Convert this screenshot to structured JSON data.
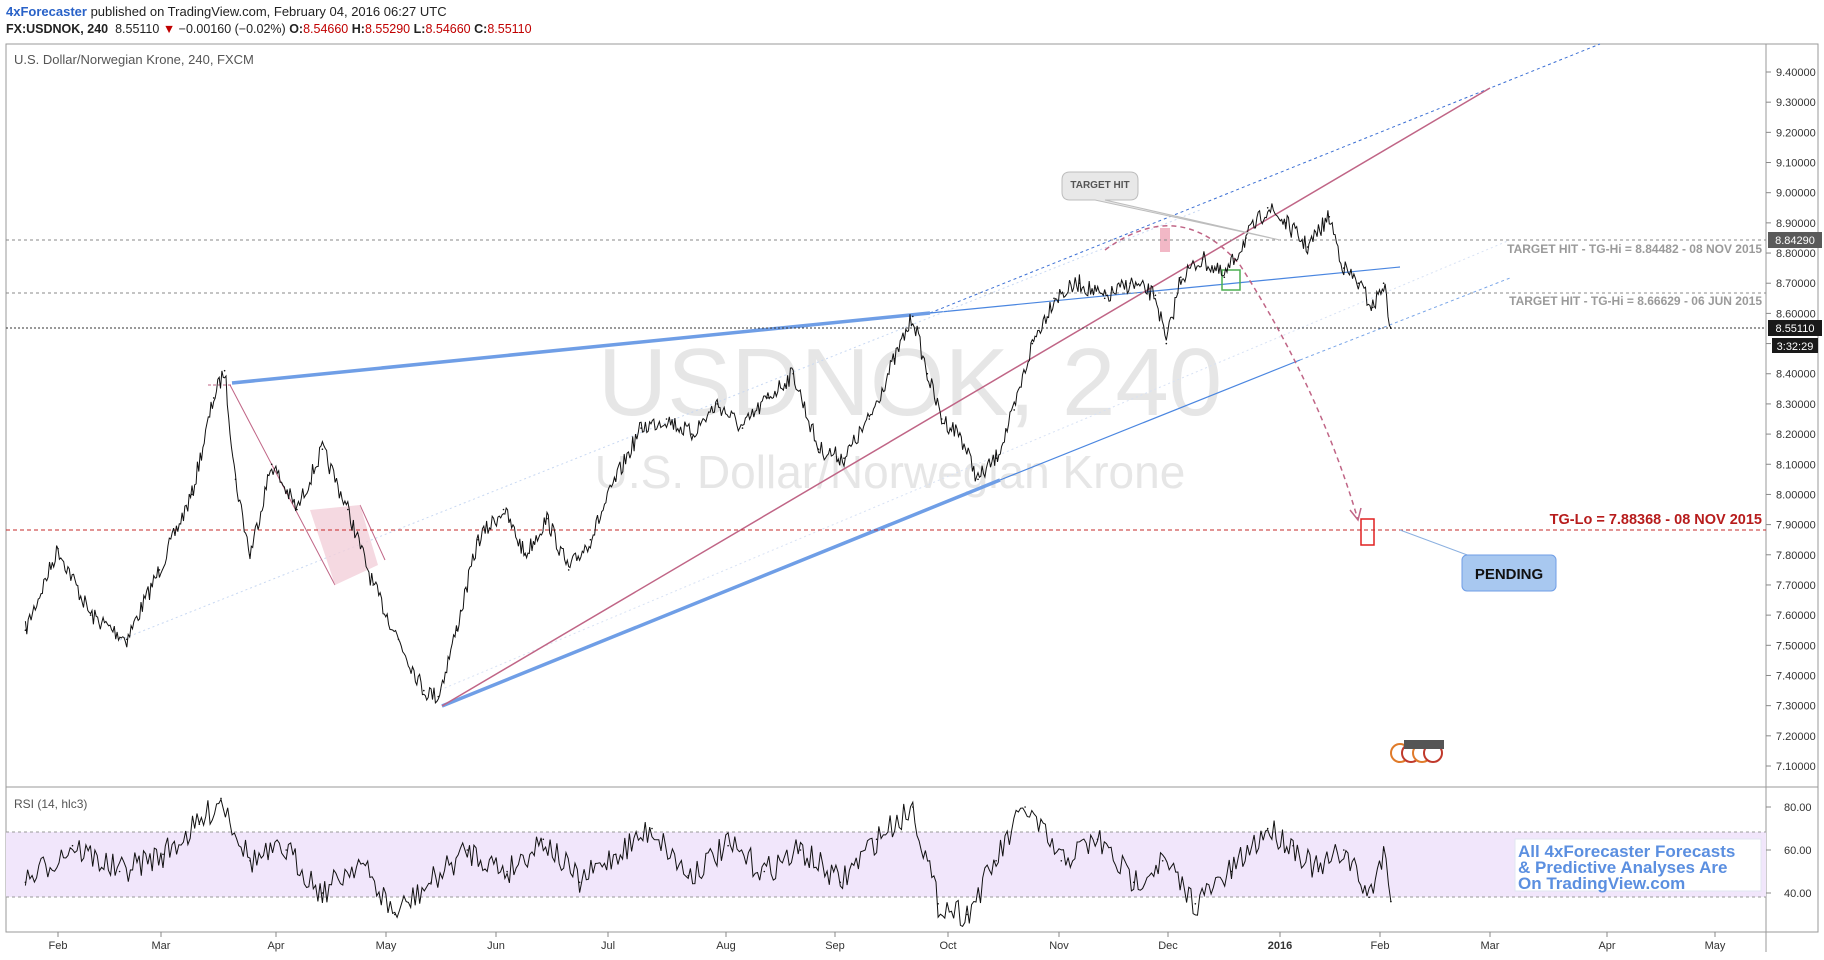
{
  "header": {
    "author": "4xForecaster",
    "published": " published on TradingView.com, February 04, 2016 06:27 UTC",
    "symbol": "FX:USDNOK, 240",
    "last": "8.55110",
    "change": "−0.00160 (−0.02%)",
    "o_label": "O:",
    "o_value": "8.54660",
    "h_label": "H:",
    "h_value": "8.55290",
    "l_label": "L:",
    "l_value": "8.54660",
    "c_label": "C:",
    "c_value": "8.55110"
  },
  "main_pane": {
    "title": "U.S. Dollar/Norwegian Krone, 240, FXCM",
    "watermark_symbol": "USDNOK, 240",
    "watermark_name": "U.S. Dollar/Norwegian Krone"
  },
  "rsi_pane": {
    "title": "RSI (14, hlc3)"
  },
  "annotations": {
    "target_hit_bubble": "TARGET HIT",
    "target_hit_1": "TARGET HIT - TG-Hi = 8.84482 - 08 NOV 2015",
    "target_hit_2": "TARGET HIT - TG-Hi = 8.66629 - 06 JUN 2015",
    "tg_lo": "TG-Lo = 7.88368 - 08 NOV 2015",
    "pending": "PENDING",
    "promo_lines": [
      "All 4xForecaster Forecasts",
      "& Predictive Analyses Are",
      "On TradingView.com"
    ]
  },
  "chart_data": [
    {
      "type": "line",
      "title": "U.S. Dollar/Norwegian Krone, 240, FXCM",
      "x_ticks": [
        "Feb",
        "Mar",
        "Apr",
        "May",
        "Jun",
        "Jul",
        "Aug",
        "Sep",
        "Oct",
        "Nov",
        "Dec",
        "2016",
        "Feb",
        "Mar",
        "Apr",
        "May"
      ],
      "y_ticks": [
        "9.40000",
        "9.30000",
        "9.20000",
        "9.10000",
        "9.00000",
        "8.90000",
        "8.80000",
        "8.70000",
        "8.60000",
        "8.50000",
        "8.40000",
        "8.30000",
        "8.20000",
        "8.10000",
        "8.00000",
        "7.90000",
        "7.80000",
        "7.70000",
        "7.60000",
        "7.50000",
        "7.40000",
        "7.30000",
        "7.20000",
        "7.10000"
      ],
      "ylim": [
        7.05,
        9.45
      ],
      "price_labels": {
        "level_high": "8.84290",
        "last_price": "8.55110",
        "countdown": "3:32:29"
      },
      "series": [
        {
          "name": "USDNOK",
          "x": [
            "2015-01-23",
            "2015-02-01",
            "2015-02-10",
            "2015-02-20",
            "2015-03-01",
            "2015-03-10",
            "2015-03-16",
            "2015-03-19",
            "2015-03-22",
            "2015-03-26",
            "2015-04-01",
            "2015-04-08",
            "2015-04-15",
            "2015-04-22",
            "2015-04-29",
            "2015-05-06",
            "2015-05-13",
            "2015-05-17",
            "2015-05-22",
            "2015-05-28",
            "2015-06-04",
            "2015-06-10",
            "2015-06-16",
            "2015-06-22",
            "2015-06-28",
            "2015-07-05",
            "2015-07-12",
            "2015-07-19",
            "2015-07-26",
            "2015-08-02",
            "2015-08-09",
            "2015-08-16",
            "2015-08-23",
            "2015-08-30",
            "2015-09-06",
            "2015-09-13",
            "2015-09-20",
            "2015-09-25",
            "2015-09-29",
            "2015-10-03",
            "2015-10-08",
            "2015-10-13",
            "2015-10-18",
            "2015-10-23",
            "2015-10-28",
            "2015-11-03",
            "2015-11-10",
            "2015-11-17",
            "2015-11-24",
            "2015-12-01",
            "2015-12-04",
            "2015-12-08",
            "2015-12-14",
            "2015-12-20",
            "2015-12-26",
            "2016-01-01",
            "2016-01-06",
            "2016-01-12",
            "2016-01-18",
            "2016-01-22",
            "2016-01-26",
            "2016-01-30",
            "2016-02-02",
            "2016-02-04"
          ],
          "values": [
            7.55,
            7.82,
            7.6,
            7.52,
            7.75,
            8.0,
            8.32,
            8.41,
            8.05,
            7.8,
            8.1,
            7.95,
            8.15,
            7.95,
            7.7,
            7.52,
            7.35,
            7.33,
            7.55,
            7.85,
            7.95,
            7.8,
            7.92,
            7.75,
            7.85,
            8.05,
            8.22,
            8.25,
            8.2,
            8.3,
            8.22,
            8.32,
            8.4,
            8.15,
            8.12,
            8.25,
            8.45,
            8.59,
            8.4,
            8.25,
            8.2,
            8.05,
            8.12,
            8.28,
            8.5,
            8.65,
            8.7,
            8.65,
            8.7,
            8.66,
            8.5,
            8.72,
            8.78,
            8.72,
            8.85,
            8.95,
            8.9,
            8.82,
            8.92,
            8.75,
            8.7,
            8.62,
            8.7,
            8.551
          ]
        }
      ]
    },
    {
      "type": "line",
      "title": "RSI (14, hlc3)",
      "y_ticks": [
        "80.00",
        "60.00",
        "40.00"
      ],
      "ylim": [
        25,
        88
      ],
      "bands": [
        38,
        68
      ],
      "series": [
        {
          "name": "RSI (14, hlc3)",
          "x": [
            "2015-01-23",
            "2015-02-05",
            "2015-02-18",
            "2015-03-02",
            "2015-03-12",
            "2015-03-18",
            "2015-03-26",
            "2015-04-05",
            "2015-04-15",
            "2015-04-25",
            "2015-05-05",
            "2015-05-15",
            "2015-05-25",
            "2015-06-05",
            "2015-06-15",
            "2015-06-25",
            "2015-07-05",
            "2015-07-15",
            "2015-07-25",
            "2015-08-05",
            "2015-08-15",
            "2015-08-25",
            "2015-09-05",
            "2015-09-15",
            "2015-09-25",
            "2015-10-02",
            "2015-10-10",
            "2015-10-18",
            "2015-10-26",
            "2015-11-05",
            "2015-11-15",
            "2015-11-25",
            "2015-12-03",
            "2015-12-12",
            "2015-12-22",
            "2016-01-01",
            "2016-01-08",
            "2016-01-15",
            "2016-01-22",
            "2016-01-29",
            "2016-02-02",
            "2016-02-04"
          ],
          "values": [
            45,
            62,
            50,
            58,
            72,
            84,
            55,
            60,
            40,
            55,
            30,
            45,
            60,
            50,
            65,
            45,
            58,
            70,
            48,
            62,
            50,
            60,
            45,
            65,
            80,
            35,
            30,
            55,
            80,
            55,
            65,
            45,
            55,
            35,
            50,
            70,
            62,
            50,
            60,
            38,
            60,
            36
          ]
        }
      ]
    }
  ]
}
